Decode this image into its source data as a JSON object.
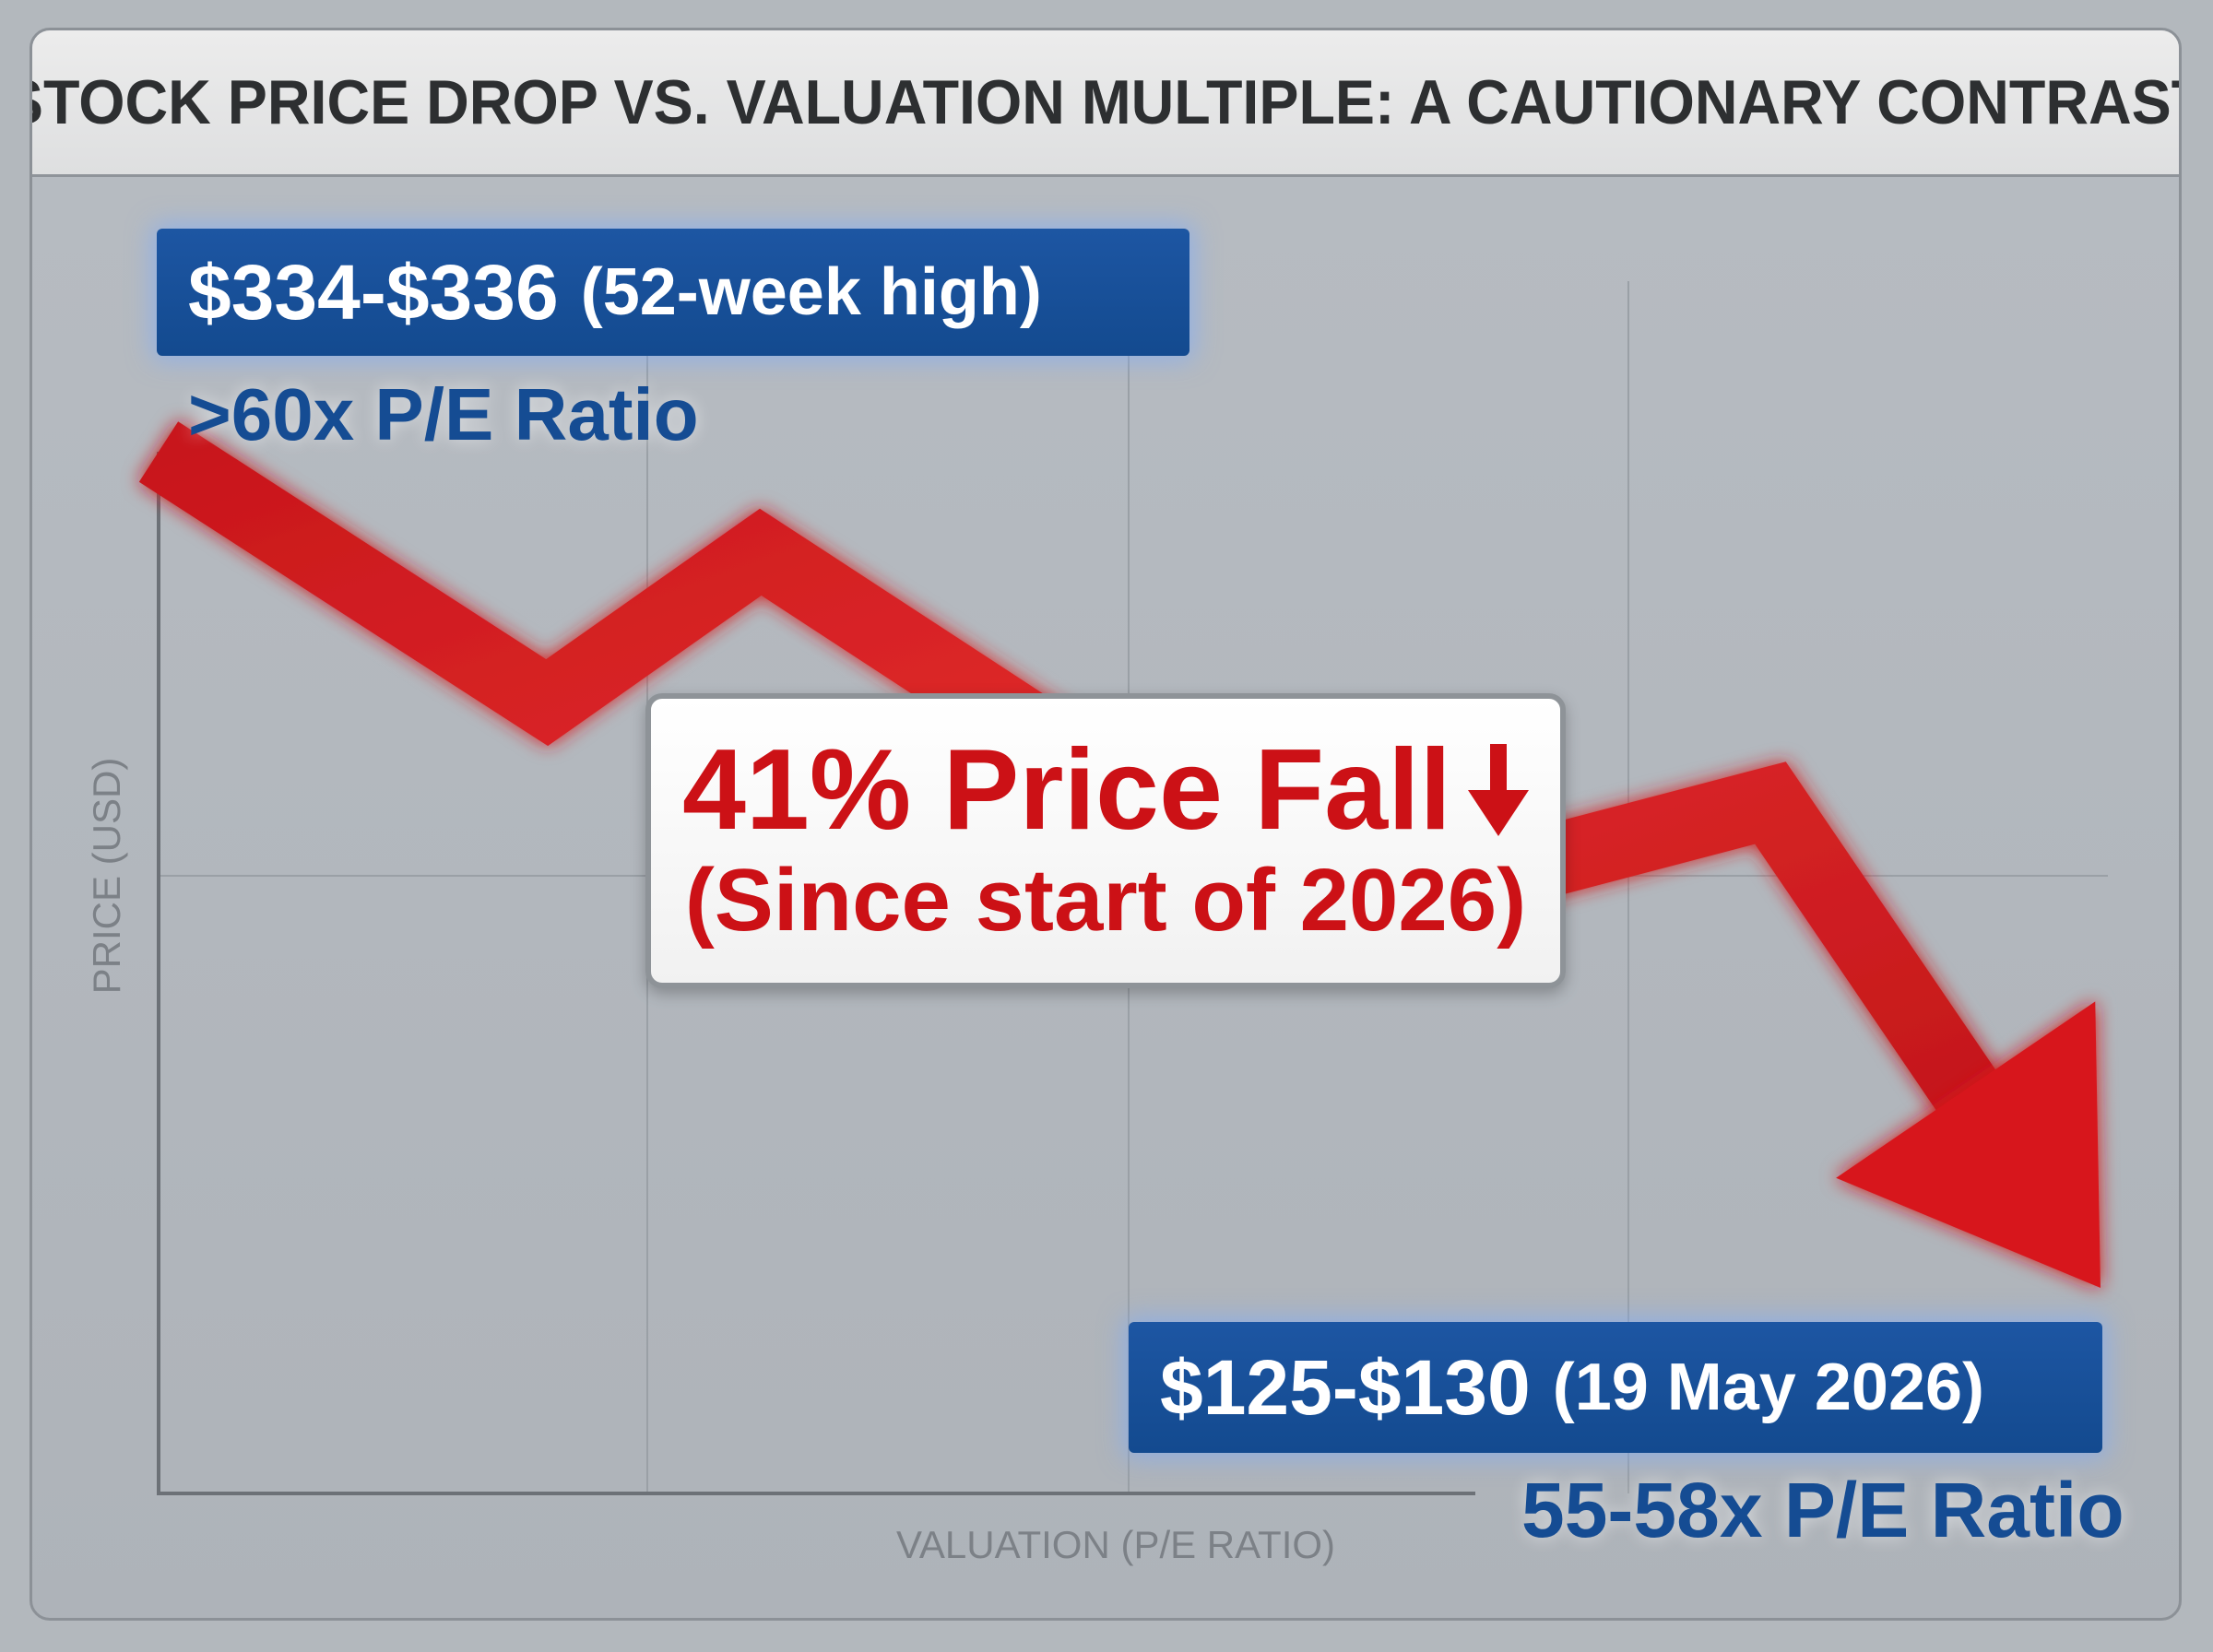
{
  "title": "STOCK PRICE DROP VS. VALUATION MULTIPLE: A CAUTIONARY CONTRAST",
  "chart_data": {
    "type": "line",
    "xlabel": "VALUATION (P/E RATIO)",
    "ylabel": "PRICE (USD)",
    "grid": true,
    "series": [
      {
        "color": "#d7191e",
        "points": [
          {
            "x": 0.0,
            "y": 1.0
          },
          {
            "x": 0.2,
            "y": 0.7
          },
          {
            "x": 0.31,
            "y": 0.88
          },
          {
            "x": 0.6,
            "y": 0.44
          },
          {
            "x": 0.83,
            "y": 0.58
          },
          {
            "x": 1.0,
            "y": 0.0
          }
        ]
      }
    ],
    "annotations": {
      "start": {
        "price": "$334-$336",
        "note": "(52-week high)",
        "pe": ">60x P/E Ratio"
      },
      "end": {
        "price": "$125-$130",
        "note": "(19 May 2026)",
        "pe": "55-58x P/E Ratio"
      },
      "callout": {
        "headline": "41% Price Fall",
        "subline": "(Since start of 2026)"
      }
    }
  },
  "colors": {
    "arrow": "#d7191e",
    "tag_background": "#164c94",
    "pe_text": "#154c93",
    "callout_text": "#cc1116"
  },
  "icons": {
    "callout_arrow": "down-arrow-icon"
  }
}
